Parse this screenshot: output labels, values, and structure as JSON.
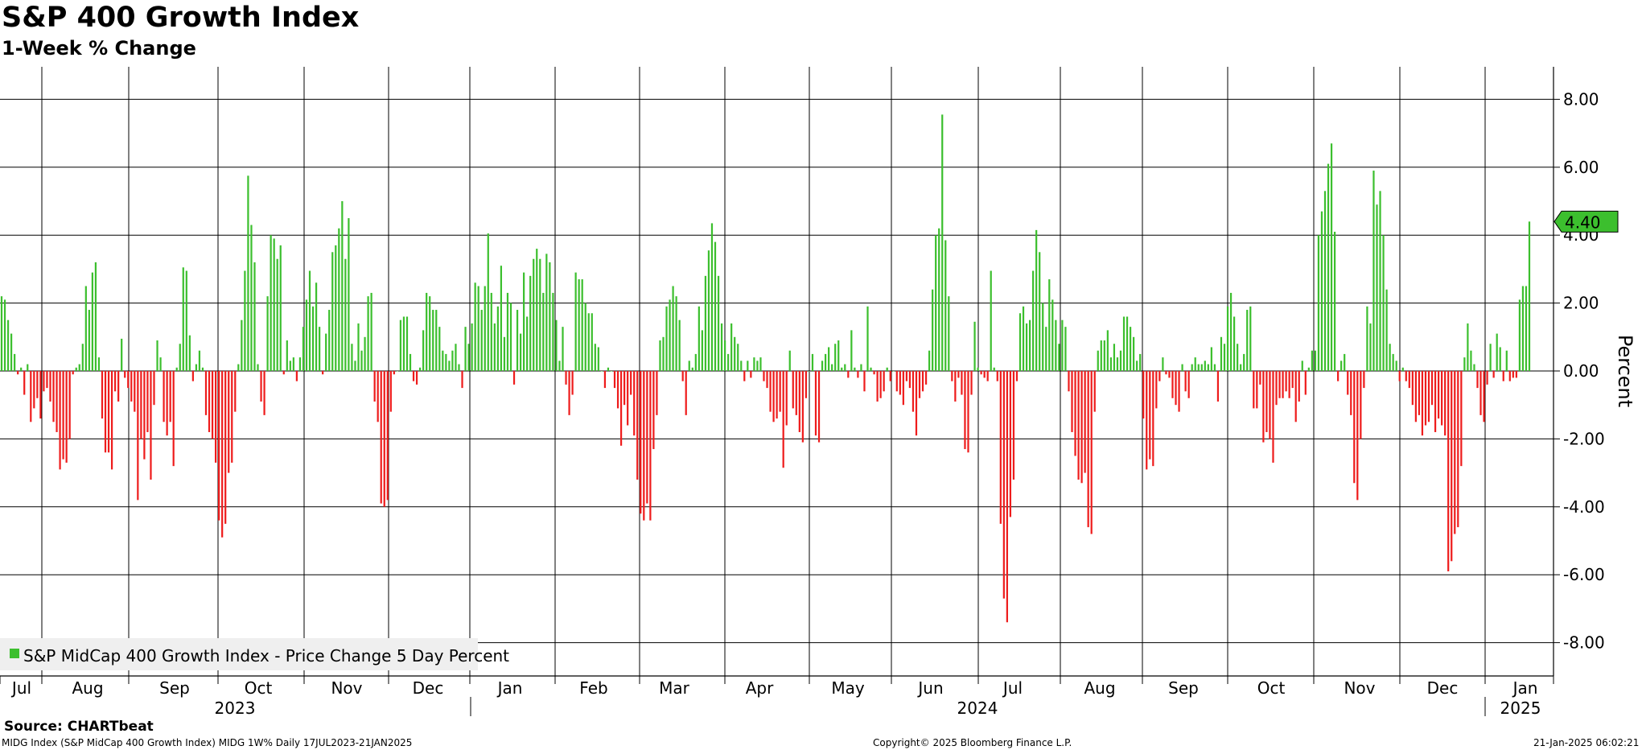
{
  "header": {
    "title": "S&P 400 Growth Index",
    "subtitle": "1-Week % Change"
  },
  "footer": {
    "source": "Source: CHARTbeat",
    "description": "MIDG Index (S&P MidCap 400 Growth Index) MIDG 1W% Daily 17JUL2023-21JAN2025",
    "copyright": "Copyright© 2025 Bloomberg Finance L.P.",
    "timestamp": "21-Jan-2025 06:02:21"
  },
  "colors": {
    "positive": "#3cbf2e",
    "negative": "#ee1c1c",
    "grid": "#000000",
    "label_box": "#3cbf2e"
  },
  "chart_data": {
    "type": "bar",
    "ylabel": "Percent",
    "ylim": [
      -9,
      9
    ],
    "yticks": [
      8,
      6,
      4,
      2,
      0,
      -2,
      -4,
      -6,
      -8
    ],
    "ytick_labels": [
      "8.00",
      "6.00",
      "4.00",
      "2.00",
      "0.00",
      "-2.00",
      "-4.00",
      "-6.00",
      "-8.00"
    ],
    "last_value_label": "4.40",
    "last_value": 4.4,
    "legend": {
      "position": "bottom-left",
      "label": "S&P MidCap 400 Growth Index - Price Change 5 Day Percent"
    },
    "month_labels": [
      "Jul",
      "Aug",
      "Sep",
      "Oct",
      "Nov",
      "Dec",
      "Jan",
      "Feb",
      "Mar",
      "Apr",
      "May",
      "Jun",
      "Jul",
      "Aug",
      "Sep",
      "Oct",
      "Nov",
      "Dec",
      "Jan"
    ],
    "year_labels": [
      "2023",
      "2024",
      "2025"
    ],
    "series": [
      {
        "name": "S&P MidCap 400 Growth Index - Price Change 5 Day Percent",
        "values": [
          2.2,
          2.1,
          1.5,
          1.1,
          0.5,
          -0.1,
          0.1,
          -0.7,
          0.2,
          -1.5,
          -1.1,
          -0.8,
          -1.4,
          -0.6,
          -0.5,
          -0.9,
          -1.5,
          -1.8,
          -2.9,
          -2.6,
          -2.7,
          -2.0,
          -0.1,
          0.1,
          0.2,
          0.8,
          2.5,
          1.8,
          2.9,
          3.2,
          0.4,
          -1.4,
          -2.4,
          -2.4,
          -2.9,
          -0.6,
          -0.9,
          0.95,
          -0.2,
          -0.5,
          -0.9,
          -1.2,
          -3.8,
          -2.0,
          -2.6,
          -1.8,
          -3.2,
          -1.0,
          0.9,
          0.4,
          -1.5,
          -1.9,
          -1.5,
          -2.8,
          0.1,
          0.8,
          3.05,
          2.95,
          1.05,
          -0.3,
          0.2,
          0.6,
          0.1,
          -1.3,
          -1.8,
          -2.0,
          -2.7,
          -4.4,
          -4.9,
          -4.5,
          -3.0,
          -2.7,
          -1.2,
          0.2,
          1.5,
          2.95,
          5.75,
          4.3,
          3.2,
          0.2,
          -0.9,
          -1.3,
          2.2,
          4.0,
          3.9,
          3.3,
          3.7,
          -0.1,
          0.9,
          0.3,
          0.4,
          -0.3,
          0.4,
          1.3,
          2.1,
          2.95,
          1.9,
          2.6,
          1.3,
          -0.1,
          1.1,
          1.8,
          3.5,
          3.7,
          4.2,
          5.0,
          3.3,
          4.5,
          0.8,
          0.3,
          1.4,
          0.6,
          1.0,
          2.2,
          2.3,
          -0.9,
          -1.5,
          -3.9,
          -4.0,
          -3.8,
          -1.2,
          -0.1,
          0.0,
          1.5,
          1.6,
          1.6,
          0.5,
          -0.3,
          -0.4,
          0.1,
          1.2,
          2.3,
          2.2,
          1.8,
          1.8,
          1.3,
          0.6,
          0.5,
          0.3,
          0.6,
          0.8,
          0.2,
          -0.5,
          1.3,
          0.8,
          1.4,
          2.6,
          2.5,
          1.8,
          2.5,
          4.05,
          2.3,
          1.4,
          1.9,
          3.1,
          1.0,
          2.3,
          2.0,
          -0.4,
          1.8,
          1.1,
          2.9,
          1.6,
          2.8,
          3.3,
          3.6,
          3.3,
          2.3,
          3.45,
          3.2,
          2.3,
          1.5,
          0.3,
          1.3,
          -0.4,
          -1.3,
          -0.7,
          2.9,
          2.7,
          2.7,
          2.0,
          1.7,
          1.7,
          0.8,
          0.7,
          0.0,
          -0.5,
          0.1,
          0.0,
          -0.5,
          -1.1,
          -2.2,
          -1.0,
          -1.6,
          -0.7,
          -1.9,
          -3.2,
          -4.2,
          -4.4,
          -3.9,
          -4.4,
          -2.3,
          -1.3,
          0.9,
          1.0,
          1.9,
          2.1,
          2.5,
          2.2,
          1.5,
          -0.3,
          -1.3,
          0.3,
          0.1,
          0.5,
          1.9,
          1.2,
          2.8,
          3.55,
          4.35,
          3.8,
          2.8,
          1.4,
          0.9,
          0.5,
          1.4,
          1.0,
          0.8,
          0.3,
          -0.3,
          0.3,
          -0.2,
          0.4,
          0.3,
          0.4,
          -0.3,
          -0.5,
          -1.2,
          -1.5,
          -1.4,
          -1.2,
          -2.85,
          -1.6,
          0.6,
          -1.1,
          -1.3,
          -1.8,
          -2.1,
          -0.8,
          0.0,
          0.5,
          -1.9,
          -2.1,
          0.3,
          0.5,
          0.7,
          0.2,
          0.8,
          0.9,
          0.1,
          0.2,
          -0.2,
          1.2,
          0.1,
          -0.2,
          0.2,
          -0.6,
          1.9,
          0.1,
          -0.1,
          -0.9,
          -0.8,
          -0.6,
          0.1,
          -0.3,
          0.0,
          -0.6,
          -0.7,
          -1.0,
          -0.3,
          -0.5,
          -1.2,
          -1.9,
          -0.8,
          -0.6,
          -0.4,
          0.6,
          2.4,
          4.0,
          4.2,
          7.55,
          3.85,
          2.2,
          -0.3,
          -0.9,
          -0.2,
          -0.7,
          -2.3,
          -2.4,
          -0.7,
          1.45,
          0.1,
          -0.1,
          -0.2,
          -0.3,
          2.95,
          0.1,
          -0.3,
          -4.5,
          -6.7,
          -7.4,
          -4.3,
          -3.2,
          -0.3,
          1.7,
          1.9,
          1.4,
          1.5,
          2.95,
          4.15,
          3.5,
          2.0,
          1.3,
          2.7,
          2.1,
          1.5,
          0.8,
          1.5,
          1.3,
          -0.6,
          -1.8,
          -2.5,
          -3.2,
          -3.3,
          -3.0,
          -4.6,
          -4.8,
          -1.2,
          0.6,
          0.9,
          0.9,
          1.2,
          0.4,
          0.8,
          0.4,
          0.6,
          1.6,
          1.6,
          1.3,
          1.0,
          0.3,
          0.5,
          -1.4,
          -2.9,
          -2.6,
          -2.8,
          -1.1,
          -0.3,
          0.4,
          -0.1,
          -0.2,
          -0.8,
          -1.0,
          -1.2,
          0.2,
          -0.6,
          -0.8,
          0.2,
          0.4,
          0.2,
          0.2,
          0.3,
          0.2,
          0.7,
          0.2,
          -0.9,
          1.0,
          0.8,
          1.9,
          2.3,
          1.6,
          0.8,
          0.2,
          0.5,
          1.8,
          1.9,
          -1.1,
          -1.1,
          -0.4,
          -2.1,
          -1.8,
          -2.0,
          -2.7,
          -1.0,
          -0.8,
          -0.8,
          -0.6,
          -0.8,
          -0.5,
          -1.5,
          -0.9,
          0.3,
          -0.7,
          0.1,
          0.6,
          0.6,
          4.0,
          4.7,
          5.3,
          6.1,
          6.7,
          4.1,
          -0.3,
          0.3,
          0.5,
          -0.7,
          -1.3,
          -3.3,
          -3.8,
          -2.0,
          -0.5,
          1.9,
          1.4,
          5.9,
          4.9,
          5.3,
          4.0,
          2.4,
          0.8,
          0.5,
          0.3,
          -0.3,
          0.1,
          -0.3,
          -0.5,
          -1.0,
          -1.5,
          -1.3,
          -1.9,
          -1.6,
          -1.5,
          -1.0,
          -1.8,
          -1.4,
          -1.6,
          -1.9,
          -5.9,
          -5.6,
          -4.8,
          -4.6,
          -2.8,
          0.4,
          1.4,
          0.6,
          0.2,
          -0.5,
          -1.3,
          -1.5,
          -0.4,
          0.8,
          -0.2,
          1.1,
          0.7,
          -0.3,
          0.6,
          -0.3,
          -0.2,
          -0.2,
          2.1,
          2.5,
          2.5,
          4.4
        ]
      }
    ]
  }
}
